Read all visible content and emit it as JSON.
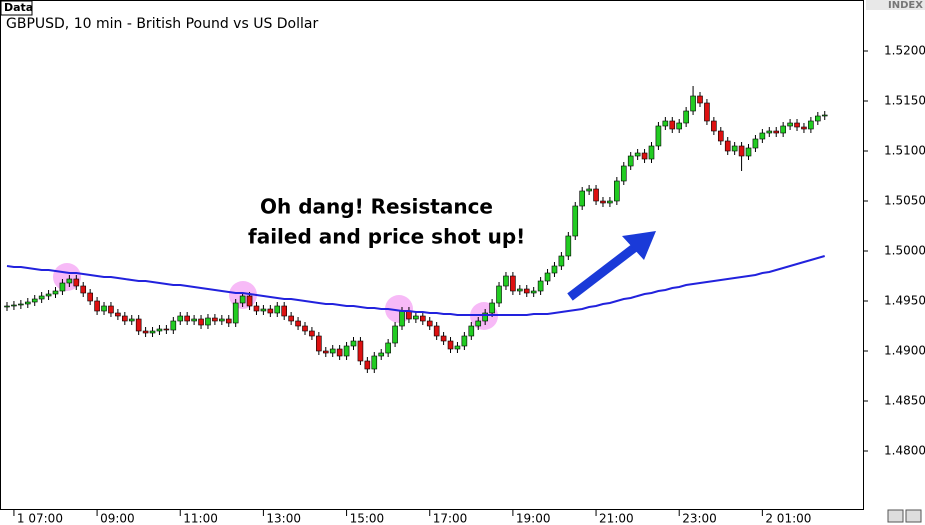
{
  "chart_data": {
    "type": "candlestick",
    "title": "GBPUSD, 10 min - British Pound vs US Dollar",
    "data_label": "Data",
    "index_label": "INDEX",
    "annotation": [
      "Oh dang! Resistance",
      "failed and price shot up!"
    ],
    "up_color": "#22cc22",
    "down_color": "#dd1111",
    "categories": [
      null,
      "1 07:00",
      null,
      null,
      null,
      null,
      null,
      null,
      null,
      null,
      null,
      null,
      null,
      "09:00",
      null,
      null,
      null,
      null,
      null,
      null,
      null,
      null,
      null,
      null,
      null,
      "11:00",
      null,
      null,
      null,
      null,
      null,
      null,
      null,
      null,
      null,
      null,
      null,
      "13:00",
      null,
      null,
      null,
      null,
      null,
      null,
      null,
      null,
      null,
      null,
      null,
      "15:00",
      null,
      null,
      null,
      null,
      null,
      null,
      null,
      null,
      null,
      null,
      null,
      "17:00",
      null,
      null,
      null,
      null,
      null,
      null,
      null,
      null,
      null,
      null,
      null,
      "19:00",
      null,
      null,
      null,
      null,
      null,
      null,
      null,
      null,
      null,
      null,
      null,
      "21:00",
      null,
      null,
      null,
      null,
      null,
      null,
      null,
      null,
      null,
      null,
      null,
      "23:00",
      null,
      null,
      null,
      null,
      null,
      null,
      null,
      null,
      null,
      null,
      null,
      "2 01:00",
      null,
      null,
      null,
      null,
      null,
      null,
      null,
      null,
      null
    ],
    "open": [
      1.4944,
      1.4945,
      1.4946,
      1.4947,
      1.4949,
      1.4952,
      1.4955,
      1.4957,
      1.496,
      1.4968,
      1.4972,
      1.4965,
      1.4958,
      1.495,
      1.494,
      1.4945,
      1.4938,
      1.4935,
      1.493,
      1.4932,
      1.492,
      1.4918,
      1.492,
      1.4922,
      1.4921,
      1.493,
      1.4935,
      1.493,
      1.4932,
      1.4926,
      1.4933,
      1.493,
      1.4932,
      1.4928,
      1.4948,
      1.4955,
      1.4945,
      1.494,
      1.4942,
      1.4938,
      1.4945,
      1.4935,
      1.493,
      1.4925,
      1.492,
      1.4915,
      1.49,
      1.4898,
      1.4902,
      1.4895,
      1.4905,
      1.491,
      1.489,
      1.4882,
      1.4895,
      1.4898,
      1.4908,
      1.4925,
      1.494,
      1.4932,
      1.4935,
      1.493,
      1.4925,
      1.4915,
      1.491,
      1.4902,
      1.4905,
      1.4915,
      1.4925,
      1.493,
      1.4938,
      1.4948,
      1.4965,
      1.4975,
      1.496,
      1.4962,
      1.4958,
      1.496,
      1.497,
      1.4978,
      1.4985,
      1.4995,
      1.5015,
      1.5045,
      1.506,
      1.5062,
      1.505,
      1.5048,
      1.505,
      1.507,
      1.5085,
      1.5095,
      1.5098,
      1.5092,
      1.5105,
      1.5125,
      1.513,
      1.5122,
      1.5128,
      1.514,
      1.5155,
      1.5148,
      1.513,
      1.512,
      1.511,
      1.51,
      1.5105,
      1.5095,
      1.5103,
      1.5112,
      1.5118,
      1.512,
      1.5118,
      1.5125,
      1.5128,
      1.5124,
      1.5122,
      1.513,
      1.5135
    ],
    "high": [
      1.4949,
      1.495,
      1.4951,
      1.4953,
      1.4956,
      1.4959,
      1.4961,
      1.4964,
      1.4972,
      1.4976,
      1.4976,
      1.4969,
      1.4962,
      1.4954,
      1.4949,
      1.4949,
      1.4942,
      1.4939,
      1.4936,
      1.4936,
      1.4924,
      1.4924,
      1.4926,
      1.4926,
      1.4934,
      1.4939,
      1.4939,
      1.4936,
      1.4936,
      1.4937,
      1.4937,
      1.4936,
      1.4936,
      1.4952,
      1.4959,
      1.4959,
      1.4949,
      1.4946,
      1.4946,
      1.4949,
      1.4949,
      1.4939,
      1.4934,
      1.4929,
      1.4924,
      1.4919,
      1.4904,
      1.4906,
      1.4906,
      1.4909,
      1.4914,
      1.4914,
      1.4894,
      1.4899,
      1.4902,
      1.4912,
      1.4929,
      1.4944,
      1.4944,
      1.4939,
      1.4939,
      1.4934,
      1.4929,
      1.4919,
      1.4914,
      1.4909,
      1.4919,
      1.4929,
      1.4934,
      1.4942,
      1.4952,
      1.4969,
      1.4979,
      1.4979,
      1.4966,
      1.4966,
      1.4964,
      1.4974,
      1.4982,
      1.4989,
      1.4999,
      1.5019,
      1.5049,
      1.5064,
      1.5066,
      1.5066,
      1.5054,
      1.5054,
      1.5074,
      1.5089,
      1.5099,
      1.5102,
      1.5102,
      1.5109,
      1.5129,
      1.5134,
      1.5134,
      1.5132,
      1.5144,
      1.5165,
      1.5159,
      1.5152,
      1.5134,
      1.5124,
      1.5114,
      1.5109,
      1.5109,
      1.5107,
      1.5116,
      1.5122,
      1.5124,
      1.5124,
      1.5129,
      1.5132,
      1.5132,
      1.5128,
      1.5134,
      1.5139,
      1.514
    ],
    "low": [
      1.494,
      1.4941,
      1.4942,
      1.4943,
      1.4945,
      1.4948,
      1.4951,
      1.4953,
      1.4956,
      1.4964,
      1.4961,
      1.4954,
      1.4946,
      1.4936,
      1.4936,
      1.4934,
      1.4931,
      1.4926,
      1.4926,
      1.4916,
      1.4914,
      1.4914,
      1.4916,
      1.4917,
      1.4917,
      1.4926,
      1.4926,
      1.4926,
      1.4922,
      1.4922,
      1.4926,
      1.4926,
      1.4924,
      1.4924,
      1.4944,
      1.4941,
      1.4936,
      1.4936,
      1.4934,
      1.4934,
      1.4931,
      1.4926,
      1.4921,
      1.4916,
      1.4911,
      1.4896,
      1.4894,
      1.4894,
      1.4891,
      1.4891,
      1.4901,
      1.4886,
      1.4878,
      1.4878,
      1.4891,
      1.4894,
      1.4904,
      1.4921,
      1.4928,
      1.4928,
      1.4926,
      1.4921,
      1.4911,
      1.4906,
      1.4898,
      1.4898,
      1.4901,
      1.4911,
      1.4921,
      1.4926,
      1.4934,
      1.4944,
      1.4961,
      1.4956,
      1.4956,
      1.4954,
      1.4954,
      1.4956,
      1.4966,
      1.4974,
      1.4981,
      1.4991,
      1.5011,
      1.5041,
      1.5056,
      1.5046,
      1.5044,
      1.5044,
      1.5046,
      1.5066,
      1.5081,
      1.5091,
      1.5088,
      1.5088,
      1.5101,
      1.5121,
      1.5118,
      1.5118,
      1.5124,
      1.5136,
      1.5144,
      1.5126,
      1.5116,
      1.5106,
      1.5096,
      1.5096,
      1.508,
      1.5091,
      1.5099,
      1.5108,
      1.5114,
      1.5114,
      1.5114,
      1.5121,
      1.512,
      1.5118,
      1.5118,
      1.5126,
      1.5131
    ],
    "close": [
      1.4945,
      1.4946,
      1.4947,
      1.4949,
      1.4952,
      1.4955,
      1.4957,
      1.496,
      1.4968,
      1.4972,
      1.4965,
      1.4958,
      1.495,
      1.494,
      1.4945,
      1.4938,
      1.4935,
      1.493,
      1.4932,
      1.492,
      1.4918,
      1.492,
      1.4922,
      1.4921,
      1.493,
      1.4935,
      1.493,
      1.4932,
      1.4926,
      1.4933,
      1.493,
      1.4932,
      1.4928,
      1.4948,
      1.4955,
      1.4945,
      1.494,
      1.4942,
      1.4938,
      1.4945,
      1.4935,
      1.493,
      1.4925,
      1.492,
      1.4915,
      1.49,
      1.4898,
      1.4902,
      1.4895,
      1.4905,
      1.491,
      1.489,
      1.4882,
      1.4895,
      1.4898,
      1.4908,
      1.4925,
      1.494,
      1.4932,
      1.4935,
      1.493,
      1.4925,
      1.4915,
      1.491,
      1.4902,
      1.4905,
      1.4915,
      1.4925,
      1.493,
      1.4938,
      1.4948,
      1.4965,
      1.4975,
      1.496,
      1.4962,
      1.4958,
      1.496,
      1.497,
      1.4978,
      1.4985,
      1.4995,
      1.5015,
      1.5045,
      1.506,
      1.5062,
      1.505,
      1.5048,
      1.505,
      1.507,
      1.5085,
      1.5095,
      1.5098,
      1.5092,
      1.5105,
      1.5125,
      1.513,
      1.5122,
      1.5128,
      1.514,
      1.5155,
      1.5148,
      1.513,
      1.512,
      1.511,
      1.51,
      1.5105,
      1.5095,
      1.5103,
      1.5112,
      1.5118,
      1.512,
      1.5118,
      1.5125,
      1.5128,
      1.5124,
      1.5122,
      1.513,
      1.5135,
      1.5136
    ],
    "moving_average": {
      "color": "#2222dd",
      "values": [
        1.4985,
        1.4984,
        1.4984,
        1.4983,
        1.4982,
        1.4981,
        1.4981,
        1.498,
        1.4979,
        1.4978,
        1.4978,
        1.4977,
        1.4976,
        1.4975,
        1.4974,
        1.4974,
        1.4973,
        1.4972,
        1.4971,
        1.497,
        1.497,
        1.4969,
        1.4968,
        1.4967,
        1.4966,
        1.4966,
        1.4965,
        1.4964,
        1.4963,
        1.4962,
        1.4961,
        1.496,
        1.4959,
        1.4958,
        1.4958,
        1.4957,
        1.4956,
        1.4955,
        1.4954,
        1.4953,
        1.4952,
        1.4952,
        1.4951,
        1.495,
        1.4949,
        1.4948,
        1.4947,
        1.4947,
        1.4946,
        1.4945,
        1.4945,
        1.4944,
        1.4943,
        1.4943,
        1.4942,
        1.4942,
        1.4941,
        1.494,
        1.494,
        1.4939,
        1.4939,
        1.4938,
        1.4938,
        1.4937,
        1.4937,
        1.4936,
        1.4936,
        1.4936,
        1.4936,
        1.4936,
        1.4936,
        1.4936,
        1.4936,
        1.4936,
        1.4936,
        1.4936,
        1.4937,
        1.4937,
        1.4937,
        1.4938,
        1.4939,
        1.494,
        1.4941,
        1.4942,
        1.4944,
        1.4945,
        1.4947,
        1.4948,
        1.495,
        1.4952,
        1.4953,
        1.4955,
        1.4957,
        1.4958,
        1.496,
        1.4961,
        1.4963,
        1.4964,
        1.4966,
        1.4967,
        1.4968,
        1.4969,
        1.497,
        1.4971,
        1.4972,
        1.4973,
        1.4974,
        1.4975,
        1.4976,
        1.4978,
        1.4979,
        1.4981,
        1.4983,
        1.4985,
        1.4987,
        1.4989,
        1.4991,
        1.4993,
        1.4995
      ]
    },
    "ylim": [
      1.4741,
      1.525
    ],
    "yticks": [
      {
        "value": 1.48,
        "label": "1.4800"
      },
      {
        "value": 1.485,
        "label": "1.4850"
      },
      {
        "value": 1.49,
        "label": "1.4900"
      },
      {
        "value": 1.495,
        "label": "1.4950"
      },
      {
        "value": 1.5,
        "label": "1.5000"
      },
      {
        "value": 1.505,
        "label": "1.5050"
      },
      {
        "value": 1.51,
        "label": "1.5100"
      },
      {
        "value": 1.515,
        "label": "1.5150"
      },
      {
        "value": 1.52,
        "label": "1.5200"
      }
    ]
  }
}
